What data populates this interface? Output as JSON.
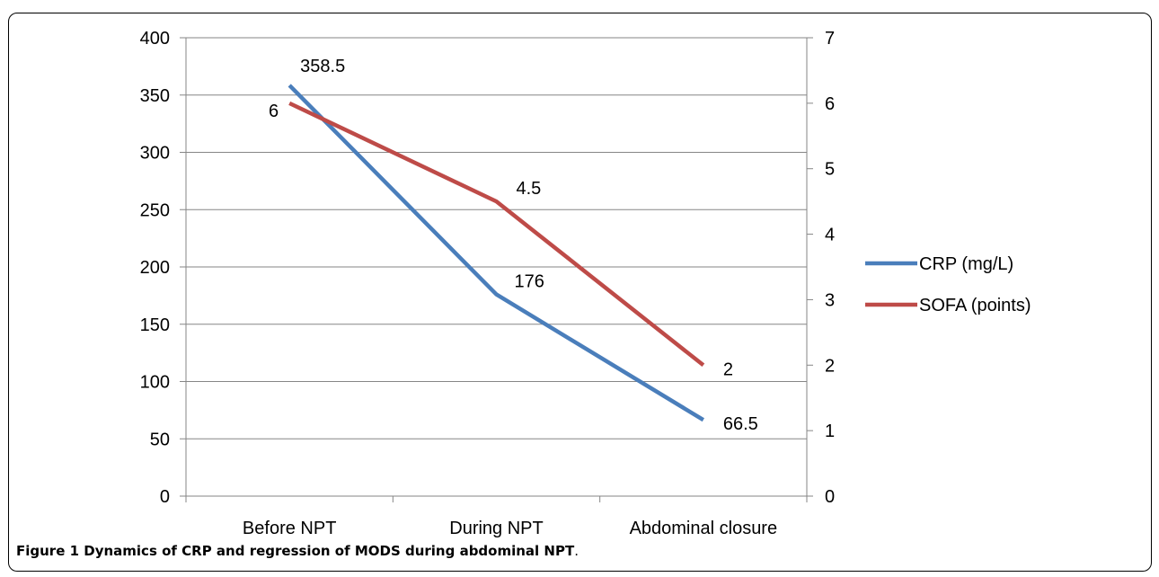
{
  "caption": {
    "bold": "Figure 1 Dynamics of CRP and regression of MODS during abdominal NPT",
    "tail": "."
  },
  "chart_data": {
    "type": "line",
    "categories": [
      "Before NPT",
      "During NPT",
      "Abdominal closure"
    ],
    "series": [
      {
        "name": "CRP (mg/L)",
        "axis": "left",
        "color": "#4a7ebb",
        "values": [
          358.5,
          176,
          66.5
        ],
        "labels": [
          "358.5",
          "176",
          "66.5"
        ]
      },
      {
        "name": "SOFA (points)",
        "axis": "right",
        "color": "#be4b48",
        "values": [
          6,
          4.5,
          2
        ],
        "labels": [
          "6",
          "4.5",
          "2"
        ]
      }
    ],
    "y_left": {
      "lim": [
        0,
        400
      ],
      "ticks": [
        "0",
        "50",
        "100",
        "150",
        "200",
        "250",
        "300",
        "350",
        "400"
      ]
    },
    "y_right": {
      "lim": [
        0,
        7
      ],
      "ticks": [
        "0",
        "1",
        "2",
        "3",
        "4",
        "5",
        "6",
        "7"
      ]
    },
    "grid": true,
    "legend": "right"
  }
}
